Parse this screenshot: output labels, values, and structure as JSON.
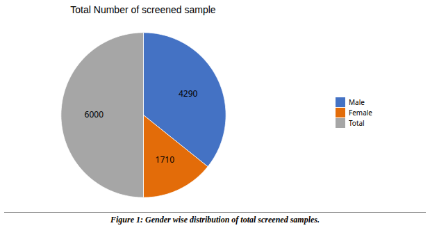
{
  "chart_data": {
    "type": "pie",
    "title": "Total Number of screened sample",
    "categories": [
      "Male",
      "Female",
      "Total"
    ],
    "values": [
      4290,
      1710,
      6000
    ],
    "colors": [
      "#4472C4",
      "#E36C09",
      "#A6A6A6"
    ],
    "data_labels": true,
    "legend": "right",
    "caption": "Figure 1: Gender wise distribution of total screened samples."
  }
}
